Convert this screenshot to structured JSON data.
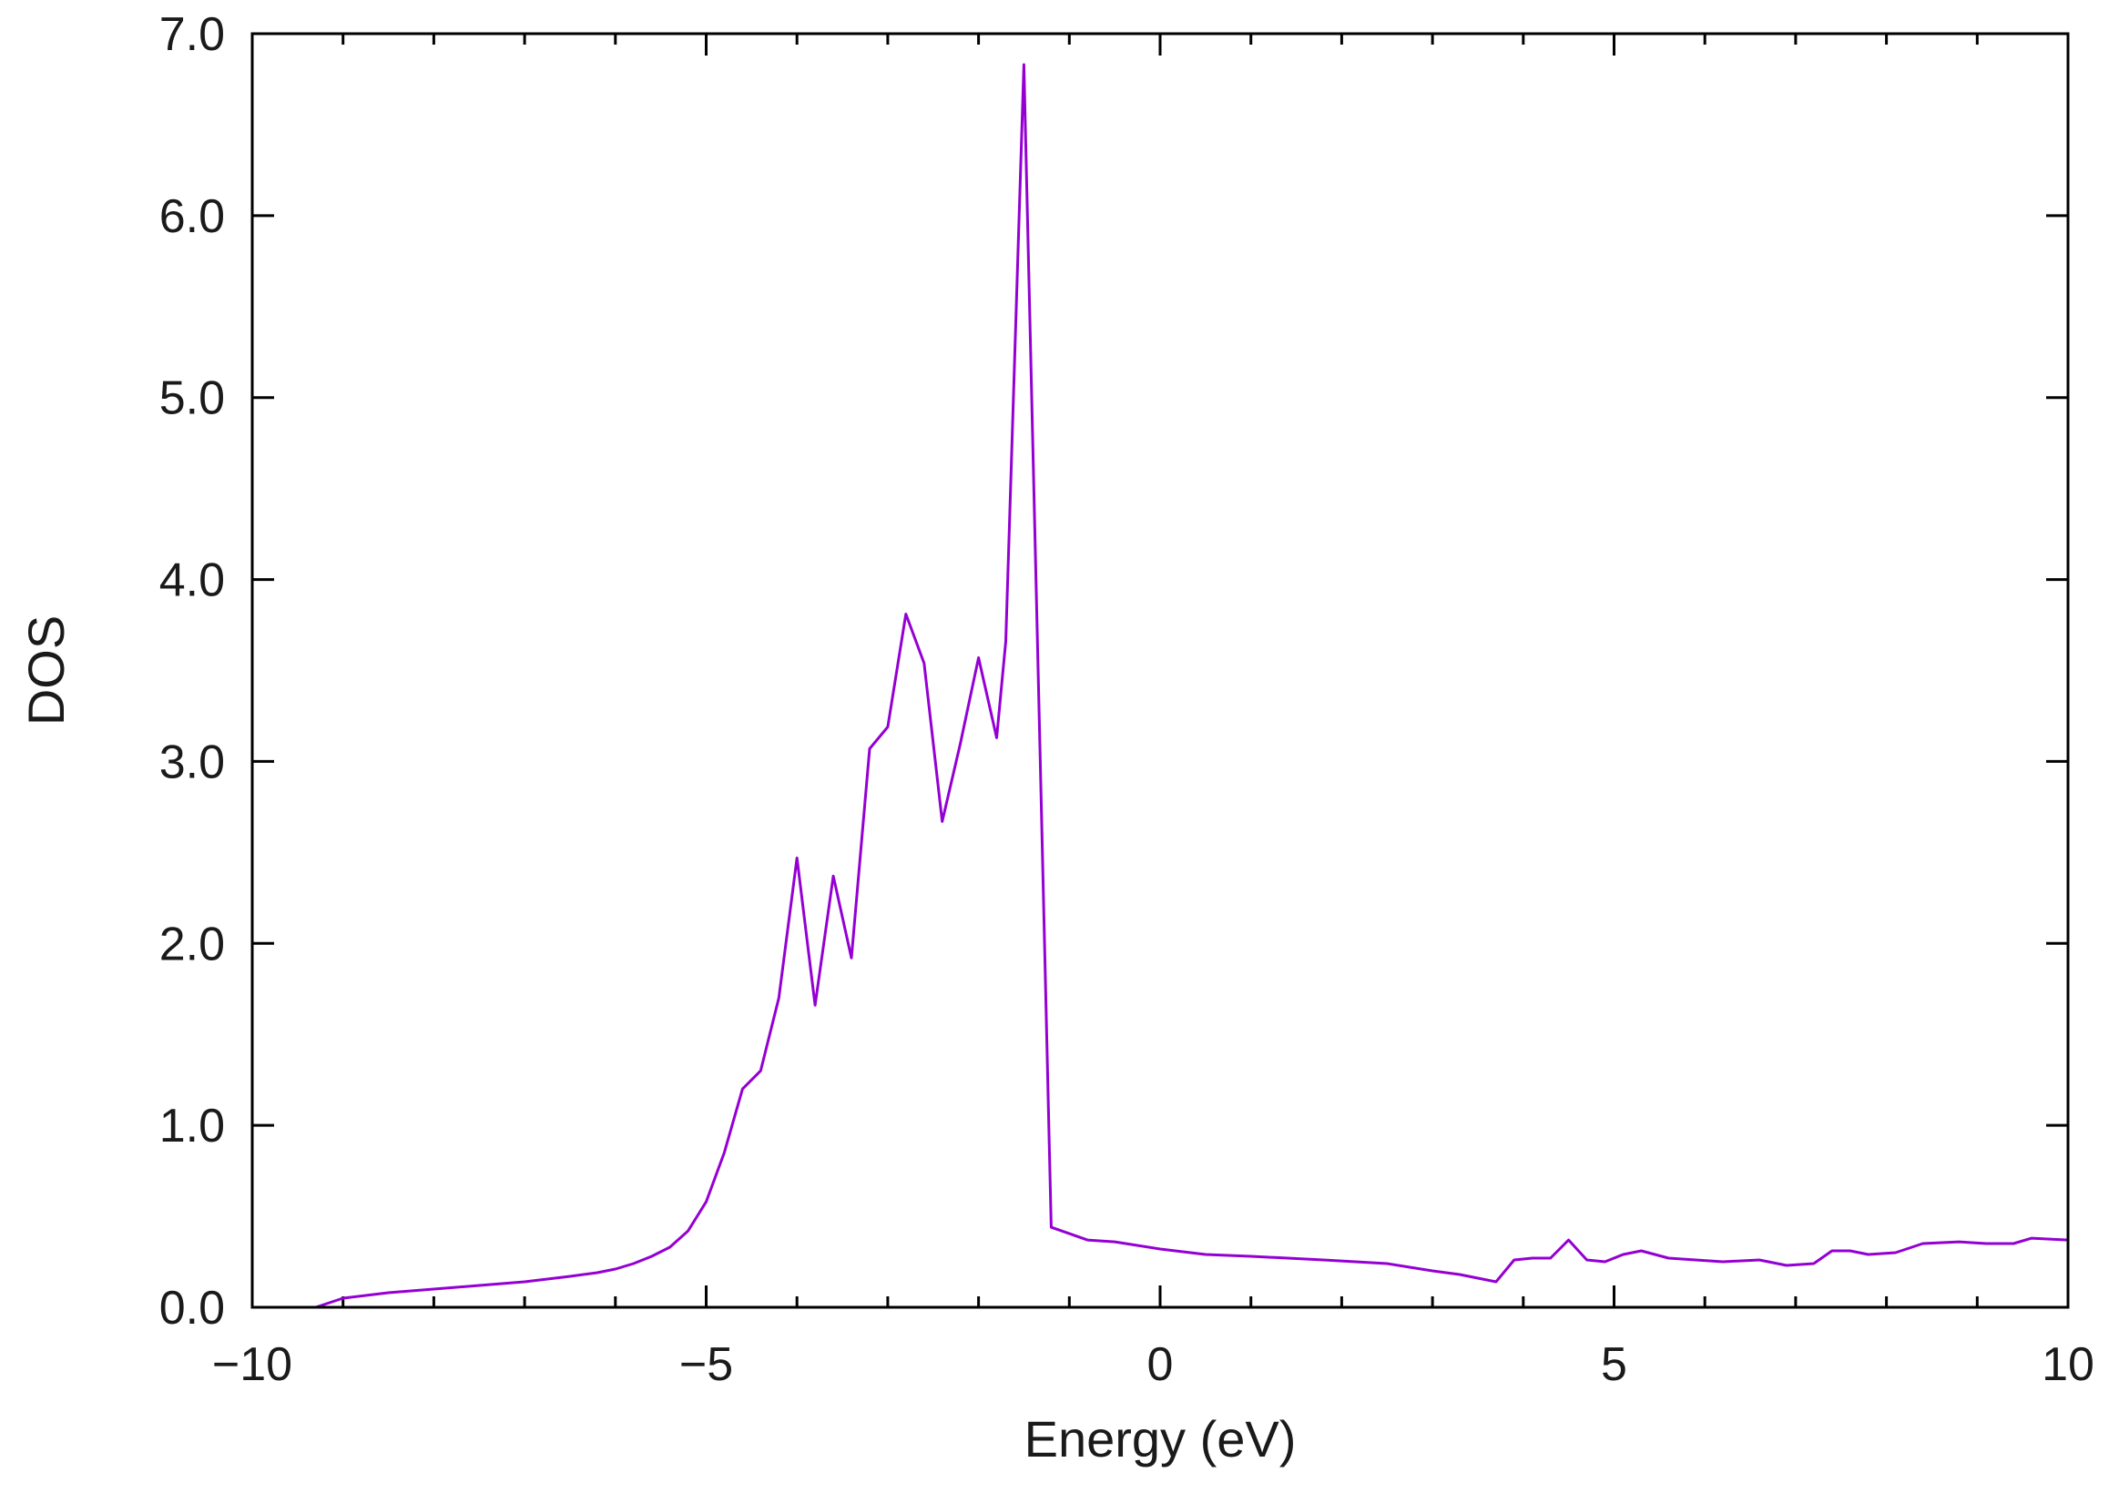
{
  "chart_data": {
    "type": "line",
    "xlabel": "Energy (eV)",
    "ylabel": "DOS",
    "xlim": [
      -10,
      10
    ],
    "ylim": [
      0,
      7
    ],
    "grid": false,
    "legend": "none",
    "x_ticks": [
      -10,
      -5,
      0,
      5,
      10
    ],
    "x_tick_labels": [
      "−10",
      "−5",
      "0",
      "5",
      "10"
    ],
    "y_ticks": [
      0,
      1,
      2,
      3,
      4,
      5,
      6,
      7
    ],
    "y_tick_labels": [
      "0.0",
      "1.0",
      "2.0",
      "3.0",
      "4.0",
      "5.0",
      "6.0",
      "7.0"
    ],
    "series": [
      {
        "color": "#9400d3",
        "x": [
          -9.3,
          -9.0,
          -8.5,
          -8.0,
          -7.5,
          -7.0,
          -6.5,
          -6.2,
          -6.0,
          -5.8,
          -5.6,
          -5.4,
          -5.2,
          -5.0,
          -4.8,
          -4.6,
          -4.4,
          -4.2,
          -4.0,
          -3.8,
          -3.6,
          -3.4,
          -3.2,
          -3.0,
          -2.8,
          -2.6,
          -2.4,
          -2.2,
          -2.0,
          -1.8,
          -1.7,
          -1.5,
          -1.2,
          -0.8,
          -0.5,
          0.0,
          0.5,
          1.0,
          1.8,
          2.5,
          3.0,
          3.3,
          3.7,
          3.9,
          4.1,
          4.3,
          4.5,
          4.7,
          4.9,
          5.1,
          5.3,
          5.6,
          5.9,
          6.2,
          6.6,
          6.9,
          7.2,
          7.4,
          7.6,
          7.8,
          8.1,
          8.4,
          8.8,
          9.1,
          9.4,
          9.6,
          10.0
        ],
        "y": [
          0.0,
          0.05,
          0.08,
          0.1,
          0.12,
          0.14,
          0.17,
          0.19,
          0.21,
          0.24,
          0.28,
          0.33,
          0.42,
          0.58,
          0.85,
          1.2,
          1.3,
          1.7,
          2.47,
          1.66,
          2.37,
          1.92,
          3.07,
          3.19,
          3.81,
          3.54,
          2.67,
          3.1,
          3.57,
          3.13,
          3.66,
          6.83,
          0.44,
          0.37,
          0.36,
          0.32,
          0.29,
          0.28,
          0.26,
          0.24,
          0.2,
          0.18,
          0.14,
          0.26,
          0.27,
          0.27,
          0.37,
          0.26,
          0.25,
          0.29,
          0.31,
          0.27,
          0.26,
          0.25,
          0.26,
          0.23,
          0.24,
          0.31,
          0.31,
          0.29,
          0.3,
          0.35,
          0.36,
          0.35,
          0.35,
          0.38,
          0.37
        ]
      }
    ]
  }
}
